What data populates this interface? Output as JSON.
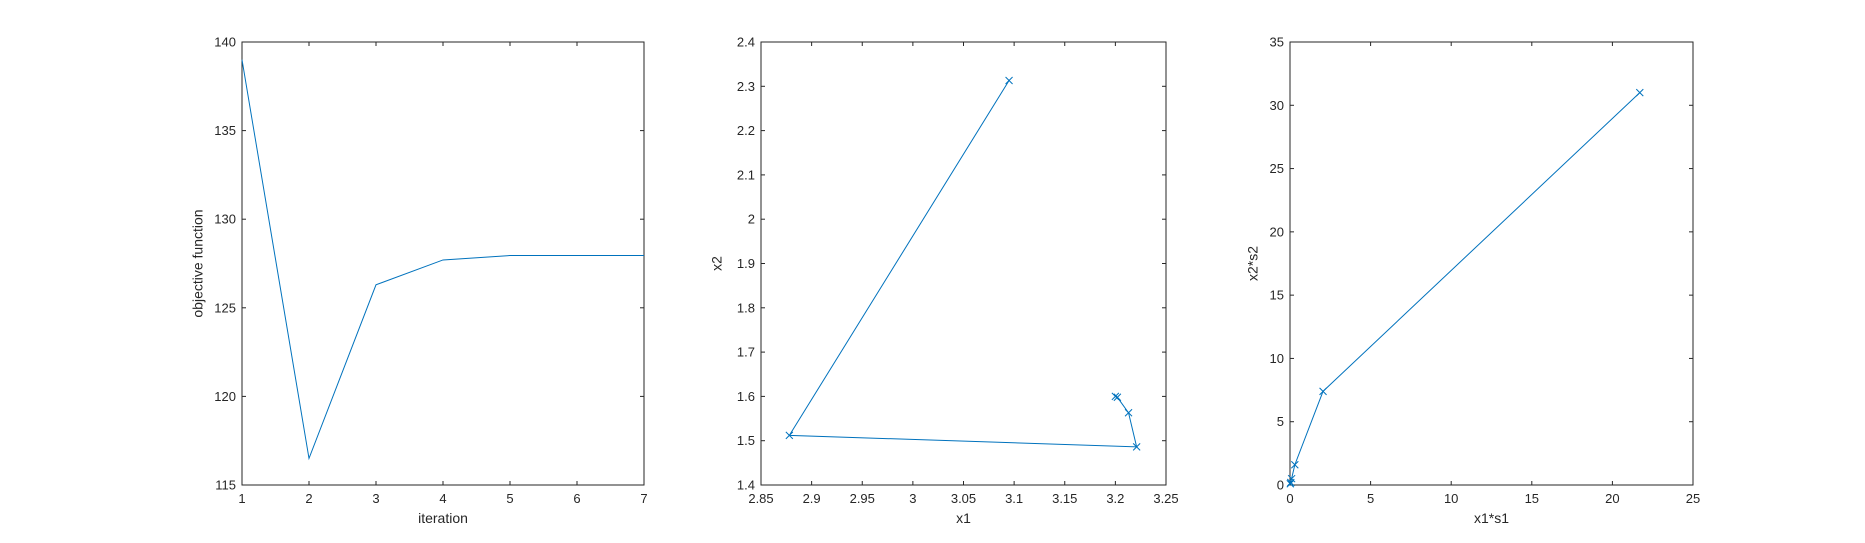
{
  "chart_data": [
    {
      "type": "line",
      "title": "",
      "xlabel": "iteration",
      "ylabel": "objective function",
      "xlim": [
        1,
        7
      ],
      "ylim": [
        115,
        140
      ],
      "xticks": [
        1,
        2,
        3,
        4,
        5,
        6,
        7
      ],
      "yticks": [
        115,
        120,
        125,
        130,
        135,
        140
      ],
      "grid": false,
      "markers": false,
      "color": "#0072BD",
      "series": [
        {
          "x": [
            1,
            2,
            3,
            4,
            5,
            6,
            7
          ],
          "y": [
            139,
            116.5,
            126.3,
            127.7,
            127.95,
            127.95,
            127.95
          ]
        }
      ]
    },
    {
      "type": "line",
      "title": "",
      "xlabel": "x1",
      "ylabel": "x2",
      "xlim": [
        2.85,
        3.25
      ],
      "ylim": [
        1.4,
        2.4
      ],
      "xticks": [
        2.85,
        2.9,
        2.95,
        3,
        3.05,
        3.1,
        3.15,
        3.2,
        3.25
      ],
      "yticks": [
        1.4,
        1.5,
        1.6,
        1.7,
        1.8,
        1.9,
        2,
        2.1,
        2.2,
        2.3,
        2.4
      ],
      "grid": false,
      "markers": true,
      "color": "#0072BD",
      "series": [
        {
          "x": [
            3.095,
            2.878,
            3.221,
            3.213,
            3.202,
            3.2
          ],
          "y": [
            2.313,
            1.512,
            1.486,
            1.563,
            1.598,
            1.6
          ]
        }
      ]
    },
    {
      "type": "line",
      "title": "",
      "xlabel": "x1*s1",
      "ylabel": "x2*s2",
      "xlim": [
        0,
        25
      ],
      "ylim": [
        0,
        35
      ],
      "xticks": [
        0,
        5,
        10,
        15,
        20,
        25
      ],
      "yticks": [
        0,
        5,
        10,
        15,
        20,
        25,
        30,
        35
      ],
      "grid": false,
      "markers": true,
      "color": "#0072BD",
      "series": [
        {
          "x": [
            21.7,
            2.05,
            0.3,
            0.1,
            0.05,
            0.02
          ],
          "y": [
            31.0,
            7.4,
            1.6,
            0.5,
            0.2,
            0.1
          ]
        }
      ]
    }
  ]
}
